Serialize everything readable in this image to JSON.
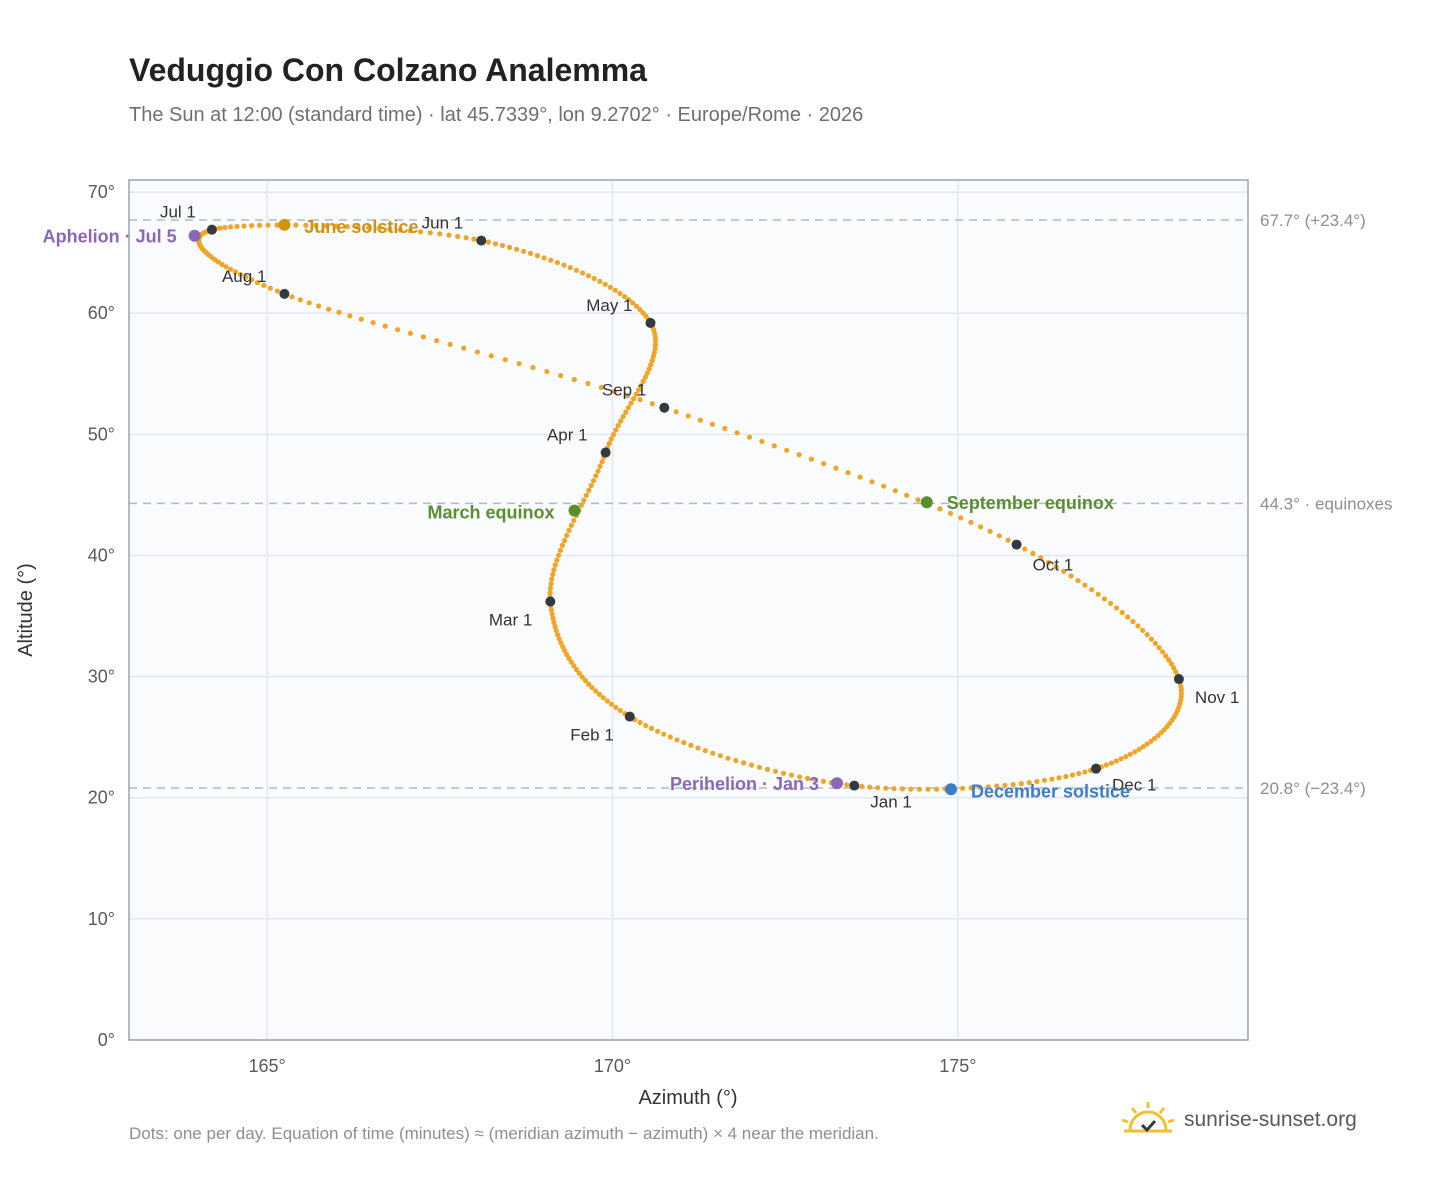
{
  "header": {
    "title": "Veduggio Con Colzano Analemma",
    "subtitle": "The Sun at 12:00 (standard time) · lat 45.7339°, lon 9.2702° · Europe/Rome · 2026"
  },
  "footer": {
    "note": "Dots: one per day. Equation of time (minutes) ≈ (meridian azimuth − azimuth) × 4 near the meridian.",
    "brand": "sunrise-sunset.org"
  },
  "colors": {
    "curve": "#f0a526",
    "month_dot": "#333a40",
    "june_solstice": "#d4900f",
    "december_solstice": "#3d7cc9",
    "equinox": "#5a8f2e",
    "apsis": "#8c67b8",
    "plot_bg": "#f9fbfd",
    "grid": "#e3e8ee",
    "ref_line": "#b3bbc4",
    "frame": "#9aa3ae"
  },
  "chart_data": {
    "type": "scatter",
    "xlabel": "Azimuth (°)",
    "ylabel": "Altitude (°)",
    "xlim": [
      163,
      179.2
    ],
    "ylim": [
      0,
      71
    ],
    "x_ticks": [
      {
        "value": 165,
        "label": "165°"
      },
      {
        "value": 170,
        "label": "170°"
      },
      {
        "value": 175,
        "label": "175°"
      }
    ],
    "y_ticks": [
      {
        "value": 0,
        "label": "0°"
      },
      {
        "value": 10,
        "label": "10°"
      },
      {
        "value": 20,
        "label": "20°"
      },
      {
        "value": 30,
        "label": "30°"
      },
      {
        "value": 40,
        "label": "40°"
      },
      {
        "value": 50,
        "label": "50°"
      },
      {
        "value": 60,
        "label": "60°"
      },
      {
        "value": 70,
        "label": "70°"
      }
    ],
    "grid": true,
    "reference_lines": [
      {
        "y": 67.7,
        "label": "67.7° (+23.4°)"
      },
      {
        "y": 44.3,
        "label": "44.3° · equinoxes"
      },
      {
        "y": 20.8,
        "label": "20.8° (−23.4°)"
      }
    ],
    "months": [
      {
        "label": "Jan 1",
        "az": 173.5,
        "alt": 21.0
      },
      {
        "label": "Feb 1",
        "az": 170.25,
        "alt": 26.7
      },
      {
        "label": "Mar 1",
        "az": 169.1,
        "alt": 36.2
      },
      {
        "label": "Apr 1",
        "az": 169.9,
        "alt": 48.5
      },
      {
        "label": "May 1",
        "az": 170.55,
        "alt": 59.2
      },
      {
        "label": "Jun 1",
        "az": 168.1,
        "alt": 66.0
      },
      {
        "label": "Jul 1",
        "az": 164.2,
        "alt": 66.9
      },
      {
        "label": "Aug 1",
        "az": 165.25,
        "alt": 61.6
      },
      {
        "label": "Sep 1",
        "az": 170.75,
        "alt": 52.2
      },
      {
        "label": "Oct 1",
        "az": 175.85,
        "alt": 40.9
      },
      {
        "label": "Nov 1",
        "az": 178.2,
        "alt": 29.8
      },
      {
        "label": "Dec 1",
        "az": 177.0,
        "alt": 22.4
      }
    ],
    "events": [
      {
        "key": "june_solstice",
        "label": "June solstice",
        "az": 165.25,
        "alt": 67.3,
        "color": "#d4900f"
      },
      {
        "key": "december_solstice",
        "label": "December solstice",
        "az": 174.9,
        "alt": 20.7,
        "color": "#3d7cc9"
      },
      {
        "key": "march_equinox",
        "label": "March equinox",
        "az": 169.45,
        "alt": 43.7,
        "color": "#5a8f2e"
      },
      {
        "key": "september_equinox",
        "label": "September equinox",
        "az": 174.55,
        "alt": 44.4,
        "color": "#5a8f2e"
      },
      {
        "key": "aphelion",
        "label": "Aphelion · Jul 5",
        "az": 163.95,
        "alt": 66.4,
        "color": "#8c67b8"
      },
      {
        "key": "perihelion",
        "label": "Perihelion · Jan 3",
        "az": 173.25,
        "alt": 21.2,
        "color": "#8c67b8"
      }
    ]
  }
}
